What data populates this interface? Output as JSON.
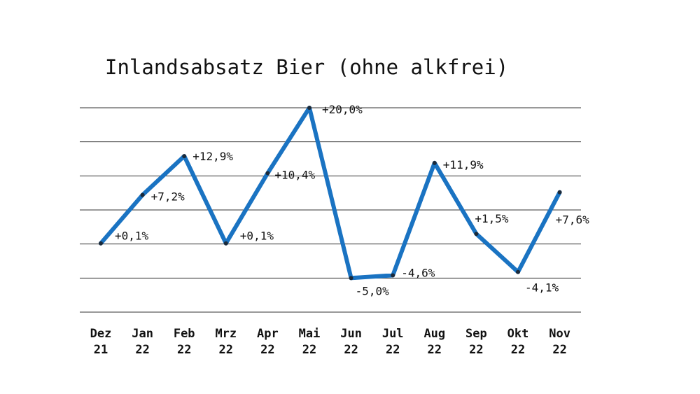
{
  "chart_data": {
    "type": "line",
    "title": "Inlandsabsatz Bier (ohne alkfrei)",
    "xlabel": "",
    "ylabel": "",
    "grid": true,
    "ylim": [
      -10,
      20
    ],
    "categories": [
      [
        "Dez",
        "21"
      ],
      [
        "Jan",
        "22"
      ],
      [
        "Feb",
        "22"
      ],
      [
        "Mrz",
        "22"
      ],
      [
        "Apr",
        "22"
      ],
      [
        "Mai",
        "22"
      ],
      [
        "Jun",
        "22"
      ],
      [
        "Jul",
        "22"
      ],
      [
        "Aug",
        "22"
      ],
      [
        "Sep",
        "22"
      ],
      [
        "Okt",
        "22"
      ],
      [
        "Nov",
        "22"
      ]
    ],
    "series": [
      {
        "values": [
          0.1,
          7.2,
          12.9,
          0.1,
          10.4,
          20.0,
          -5.0,
          -4.6,
          11.9,
          1.5,
          -4.1,
          7.6
        ],
        "labels": [
          "+0,1%",
          "+7,2%",
          "+12,9%",
          "+0,1%",
          "+10,4%",
          "+20,0%",
          "-5,0%",
          "-4,6%",
          "+11,9%",
          "+1,5%",
          "-4,1%",
          "+7,6%"
        ],
        "color": "#1a73c2"
      }
    ]
  }
}
